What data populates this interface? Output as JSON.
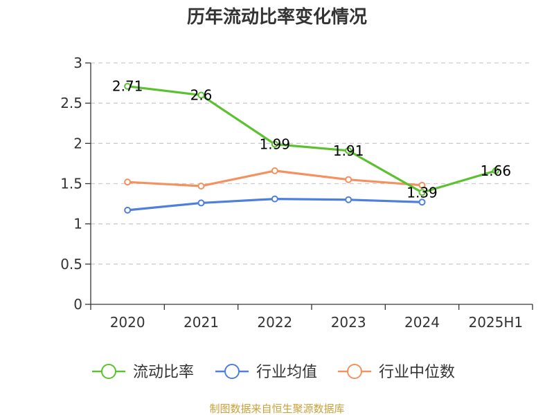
{
  "chart_data": {
    "type": "line",
    "title": "历年流动比率变化情况",
    "categories": [
      "2020",
      "2021",
      "2022",
      "2023",
      "2024",
      "2025H1"
    ],
    "ylim": [
      0,
      3
    ],
    "yticks": [
      "0",
      "0.5",
      "1",
      "1.5",
      "2",
      "2.5",
      "3"
    ],
    "grid": "horizontal dashed",
    "legend_position": "bottom",
    "series": [
      {
        "name": "流动比率",
        "color": "#5bc130",
        "values": [
          2.71,
          2.6,
          1.99,
          1.91,
          1.39,
          1.66
        ],
        "labels": [
          "2.71",
          "2.6",
          "1.99",
          "1.91",
          "1.39",
          "1.66"
        ]
      },
      {
        "name": "行业均值",
        "color": "#4e7fdc",
        "values": [
          1.17,
          1.26,
          1.31,
          1.3,
          1.27,
          null
        ]
      },
      {
        "name": "行业中位数",
        "color": "#f5915e",
        "values": [
          1.52,
          1.47,
          1.66,
          1.55,
          1.48,
          null
        ]
      }
    ]
  },
  "source": "制图数据来自恒生聚源数据库"
}
